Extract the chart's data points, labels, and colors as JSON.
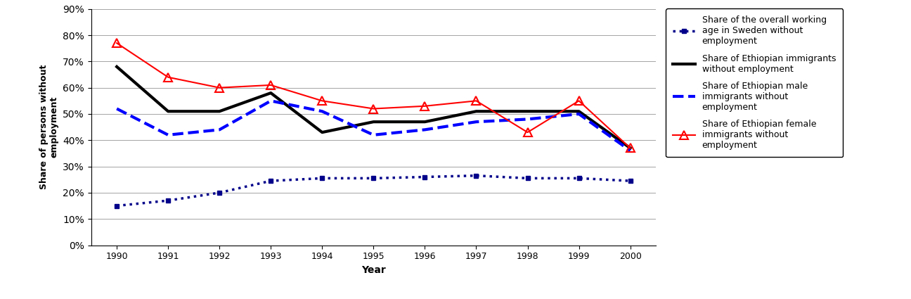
{
  "years": [
    1990,
    1991,
    1992,
    1993,
    1994,
    1995,
    1996,
    1997,
    1998,
    1999,
    2000
  ],
  "overall_sweden": [
    0.15,
    0.17,
    0.2,
    0.245,
    0.255,
    0.255,
    0.26,
    0.265,
    0.255,
    0.255,
    0.245
  ],
  "ethiopian_total": [
    0.68,
    0.51,
    0.51,
    0.58,
    0.43,
    0.47,
    0.47,
    0.51,
    0.51,
    0.51,
    0.37
  ],
  "ethiopian_male": [
    0.52,
    0.42,
    0.44,
    0.55,
    0.51,
    0.42,
    0.44,
    0.47,
    0.48,
    0.5,
    0.36
  ],
  "ethiopian_female": [
    0.77,
    0.64,
    0.6,
    0.61,
    0.55,
    0.52,
    0.53,
    0.55,
    0.43,
    0.55,
    0.37
  ],
  "overall_sweden_label": "Share of the overall working\nage in Sweden without\nemployment",
  "ethiopian_total_label": "Share of Ethiopian immigrants\nwithout employment",
  "ethiopian_male_label": "Share of Ethiopian male\nimmigrants without\nemployment",
  "ethiopian_female_label": "Share of Ethiopian female\nimmigrants without\nemployment",
  "ylabel": "Share of persons without\nemployment",
  "xlabel": "Year",
  "ylim": [
    0,
    0.9
  ],
  "yticks": [
    0.0,
    0.1,
    0.2,
    0.3,
    0.4,
    0.5,
    0.6,
    0.7,
    0.8,
    0.9
  ],
  "overall_color": "#00008B",
  "ethiopian_total_color": "#000000",
  "ethiopian_male_color": "#0000FF",
  "ethiopian_female_color": "#FF0000",
  "background_color": "#FFFFFF"
}
